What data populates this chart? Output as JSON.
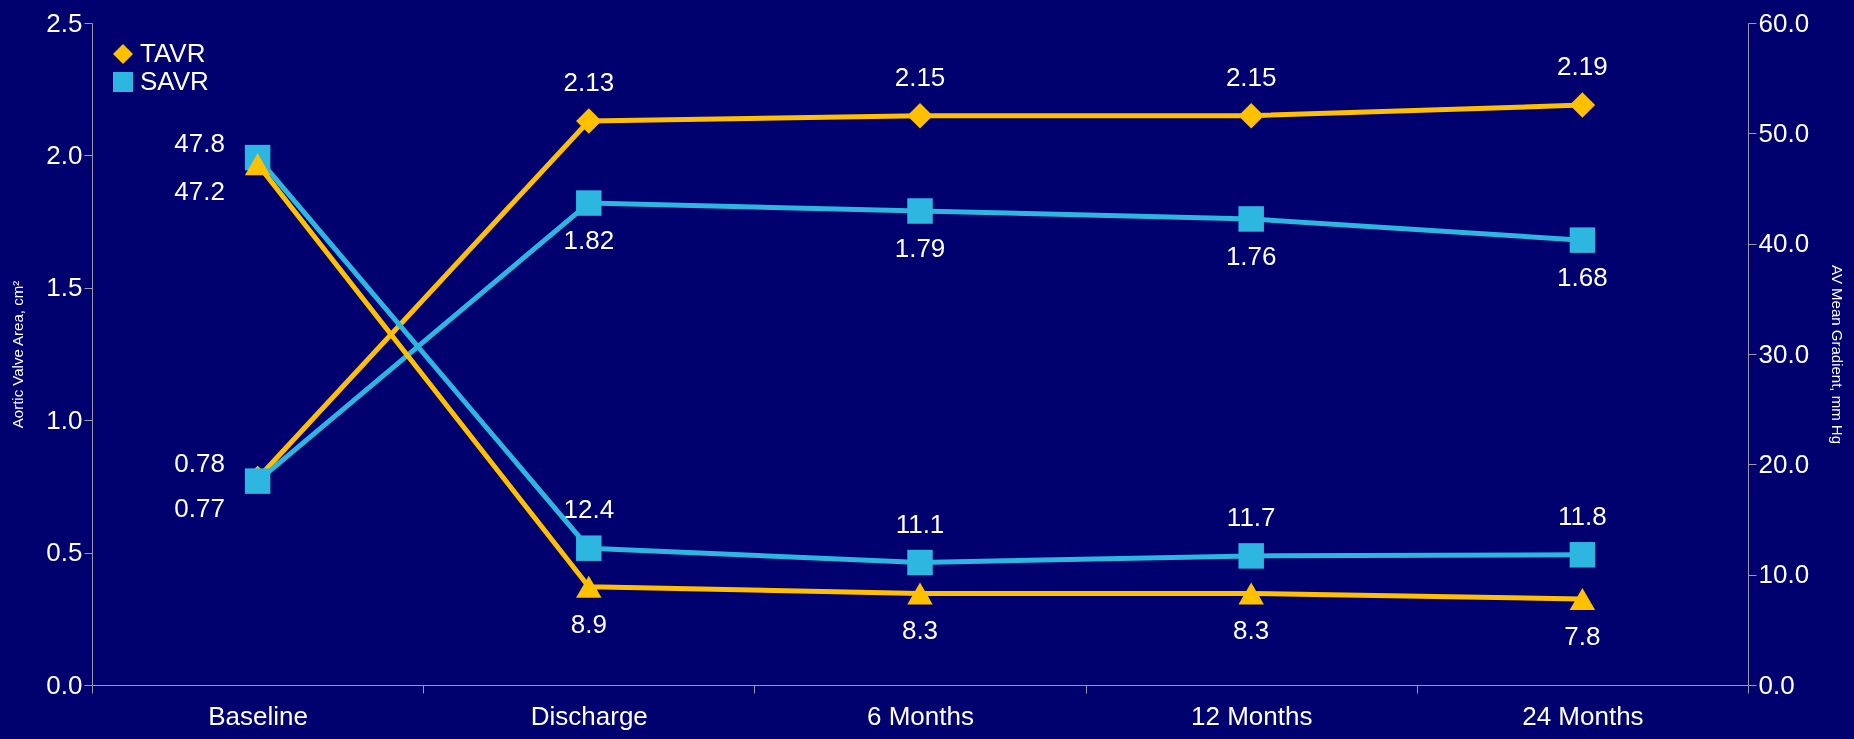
{
  "chart_data": {
    "type": "line",
    "categories": [
      "Baseline",
      "Discharge",
      "6 Months",
      "12 Months",
      "24 Months"
    ],
    "ylabel": "Aortic Valve Area, cm²",
    "y2label": "AV Mean Gradient, mm Hg",
    "ylim": [
      0,
      2.5
    ],
    "yticks": [
      {
        "value": 0,
        "label": "0.0"
      },
      0.5,
      {
        "value": 1,
        "label": "1.0"
      },
      1.5,
      {
        "value": 2,
        "label": "2.0"
      },
      2.5
    ],
    "y2lim": [
      0,
      60
    ],
    "y2ticks": [
      {
        "value": 0,
        "label": "0.0"
      },
      {
        "value": 10,
        "label": "10.0"
      },
      {
        "value": 20,
        "label": "20.0"
      },
      {
        "value": 30,
        "label": "30.0"
      },
      {
        "value": 40,
        "label": "40.0"
      },
      {
        "value": 50,
        "label": "50.0"
      },
      {
        "value": 60,
        "label": "60.0"
      }
    ],
    "series": [
      {
        "name": "TAVR",
        "color": "#ffc000",
        "marker": "diamond",
        "values": [
          0.78,
          2.13,
          2.15,
          2.15,
          2.19
        ]
      },
      {
        "name": "SAVR",
        "color": "#2db6e0",
        "marker": "square",
        "values": [
          0.77,
          1.82,
          1.79,
          1.76,
          1.68
        ]
      },
      {
        "color": "#ffc000",
        "marker": "triangle",
        "axis": "y2",
        "values": [
          47.2,
          8.9,
          8.3,
          8.3,
          7.8
        ]
      },
      {
        "color": "#2db6e0",
        "marker": "square",
        "axis": "y2",
        "values": [
          47.8,
          12.4,
          11.1,
          11.7,
          11.8
        ]
      }
    ],
    "data_labels": true,
    "legend": "top left",
    "grid": false,
    "line_style": "solid"
  }
}
